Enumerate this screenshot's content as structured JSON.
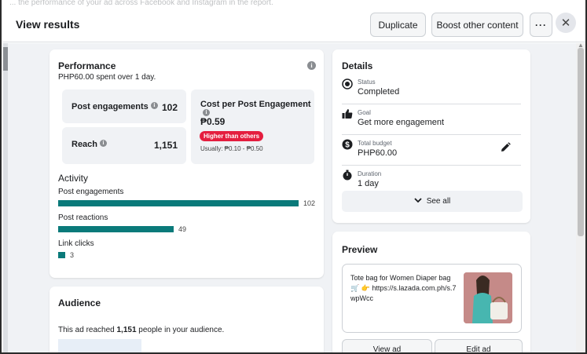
{
  "header": {
    "top_strip_text": "... the performance of your ad across Facebook and Instagram in the report.",
    "title": "View results",
    "duplicate_label": "Duplicate",
    "boost_label": "Boost other content",
    "more_label": "···",
    "close_label": "✕"
  },
  "performance": {
    "title": "Performance",
    "spent": "PHP60.00 spent over 1 day.",
    "post_engagements_label": "Post engagements",
    "post_engagements_value": "102",
    "reach_label": "Reach",
    "reach_value": "1,151",
    "cost_label": "Cost per Post Engagement",
    "cost_value": "₱0.59",
    "badge": "Higher than others",
    "usually": "Usually: ₱0.10 - ₱0.50"
  },
  "activity": {
    "title": "Activity",
    "items": [
      {
        "label": "Post engagements",
        "value": "102",
        "count": 102
      },
      {
        "label": "Post reactions",
        "value": "49",
        "count": 49
      },
      {
        "label": "Link clicks",
        "value": "3",
        "count": 3
      }
    ],
    "bar_color": "#0a7a7a"
  },
  "audience": {
    "title": "Audience",
    "text_prefix": "This ad reached ",
    "reached": "1,151",
    "text_suffix": " people in your audience."
  },
  "details": {
    "title": "Details",
    "rows": [
      {
        "icon": "status-icon",
        "label": "Status",
        "value": "Completed"
      },
      {
        "icon": "thumbs-up-icon",
        "label": "Goal",
        "value": "Get more engagement"
      },
      {
        "icon": "dollar-icon",
        "label": "Total budget",
        "value": "PHP60.00"
      },
      {
        "icon": "timer-icon",
        "label": "Duration",
        "value": "1 day"
      }
    ],
    "see_all": "See all"
  },
  "preview": {
    "title": "Preview",
    "text": "Tote bag for Women Diaper bag 🛒 👉 https://s.lazada.com.ph/s.7wpWcc",
    "view_ad": "View ad",
    "edit_ad": "Edit ad"
  },
  "colors": {
    "accent_teal": "#0a7a7a",
    "badge_red": "#e41e3f",
    "background": "#f0f2f5"
  }
}
